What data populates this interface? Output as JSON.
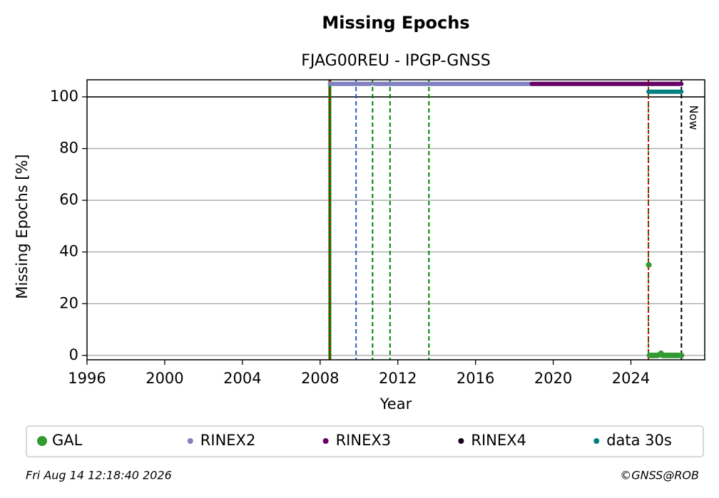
{
  "chart_data": {
    "type": "line",
    "title": "Missing Epochs",
    "subtitle": "FJAG00REU - IPGP-GNSS",
    "x_label": "Year",
    "y_label": "Missing Epochs [%]",
    "xlim": [
      1996,
      2027.8
    ],
    "ylim": [
      -1.7,
      106.6
    ],
    "xticks": [
      1996,
      2000,
      2004,
      2008,
      2012,
      2016,
      2020,
      2024
    ],
    "yticks": [
      0,
      20,
      40,
      60,
      80,
      100
    ],
    "grid": true,
    "hline": {
      "y": 100,
      "color": "#000000"
    },
    "vlines": [
      {
        "x": 2008.5,
        "color": "#008000",
        "dash": "solid"
      },
      {
        "x": 2008.5,
        "color": "#dd0000",
        "dash": "dotted"
      },
      {
        "x": 2009.85,
        "color": "#1f5fb4",
        "dash": "dashed"
      },
      {
        "x": 2010.7,
        "color": "#008000",
        "dash": "dashed"
      },
      {
        "x": 2011.6,
        "color": "#008000",
        "dash": "dashed"
      },
      {
        "x": 2013.6,
        "color": "#008000",
        "dash": "dashed"
      },
      {
        "x": 2024.9,
        "color": "#008000",
        "dash": "dashed"
      },
      {
        "x": 2024.9,
        "color": "#dd0000",
        "dash": "dotted"
      }
    ],
    "now": {
      "x": 2026.6,
      "label": "Now",
      "color": "#000000"
    },
    "series": [
      {
        "name": "GAL",
        "color": "#339933",
        "mode": "markers",
        "x": [
          2024.92,
          2024.96,
          2025.05,
          2025.15,
          2025.25,
          2025.35,
          2025.45,
          2025.55,
          2025.65,
          2025.75,
          2025.85,
          2025.95,
          2026.05,
          2026.15,
          2026.25,
          2026.35,
          2026.45,
          2026.6
        ],
        "values": [
          35,
          0,
          0,
          0,
          0,
          0,
          0.2,
          0.8,
          0,
          0,
          0,
          0,
          0,
          0,
          0,
          0,
          0,
          0
        ]
      },
      {
        "name": "RINEX2",
        "color": "#8080c0",
        "mode": "lines",
        "x": [
          2008.5,
          2010.6,
          2010.7,
          2010.8,
          2018.9
        ],
        "values": [
          105,
          105,
          null,
          105,
          105
        ]
      },
      {
        "name": "RINEX3",
        "color": "#660066",
        "mode": "lines",
        "x": [
          2018.9,
          2026.6
        ],
        "values": [
          105,
          105
        ]
      },
      {
        "name": "RINEX4",
        "color": "#1a001a",
        "mode": "lines",
        "x": [],
        "values": []
      },
      {
        "name": "data 30s",
        "color": "#008080",
        "mode": "lines",
        "x": [
          2024.9,
          2026.6
        ],
        "values": [
          102,
          102
        ]
      }
    ],
    "footer_left": "Fri Aug 14 12:18:40 2026",
    "footer_right": "©GNSS@ROB"
  }
}
